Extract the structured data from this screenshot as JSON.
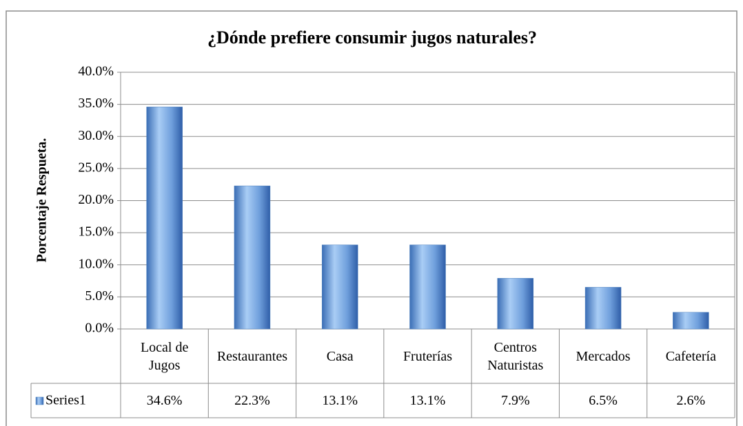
{
  "chart_data": {
    "type": "bar",
    "title": "¿Dónde prefiere consumir jugos naturales?",
    "y_label": "Porcentaje Respueta.",
    "categories": [
      "Local de Jugos",
      "Restaurantes",
      "Casa",
      "Fruterías",
      "Centros Naturistas",
      "Mercados",
      "Cafetería"
    ],
    "series": [
      {
        "name": "Series1",
        "color": "#4f81bd",
        "values": [
          34.6,
          22.3,
          13.1,
          13.1,
          7.9,
          6.5,
          2.6
        ],
        "value_labels": [
          "34.6%",
          "22.3%",
          "13.1%",
          "13.1%",
          "7.9%",
          "6.5%",
          "2.6%"
        ]
      }
    ],
    "ylim": [
      0,
      40
    ],
    "yticks": [
      {
        "value": 0,
        "label": "0.0%"
      },
      {
        "value": 5,
        "label": "5.0%"
      },
      {
        "value": 10,
        "label": "10.0%"
      },
      {
        "value": 15,
        "label": "15.0%"
      },
      {
        "value": 20,
        "label": "20.0%"
      },
      {
        "value": 25,
        "label": "25.0%"
      },
      {
        "value": 30,
        "label": "30.0%"
      },
      {
        "value": 35,
        "label": "35.0%"
      },
      {
        "value": 40,
        "label": "40.0%"
      }
    ],
    "grid": true,
    "data_table": true
  }
}
